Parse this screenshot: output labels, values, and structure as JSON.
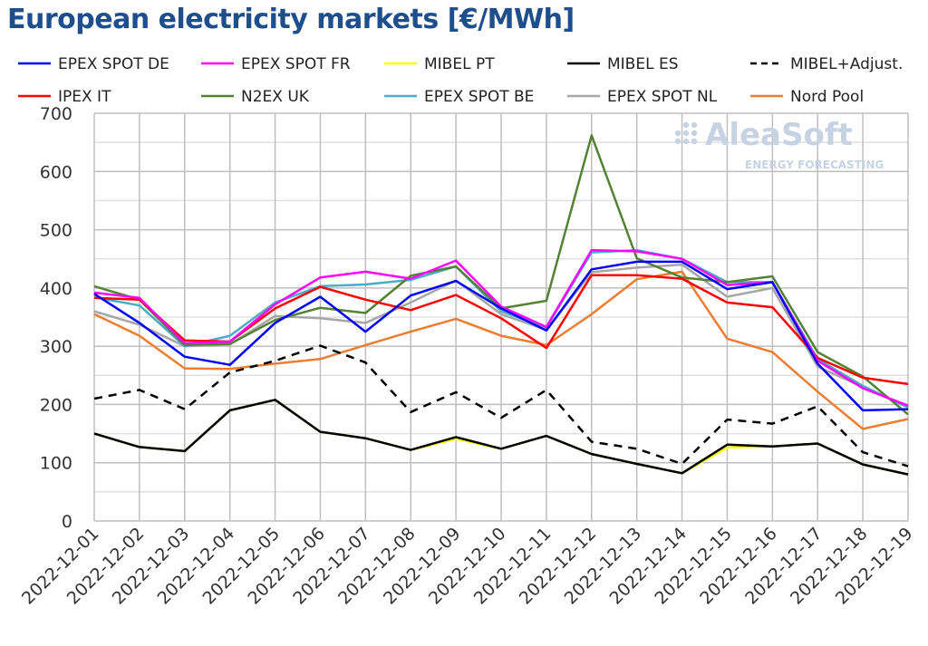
{
  "chart_data": {
    "type": "line",
    "title": "European electricity markets [€/MWh]",
    "xlabel": "",
    "ylabel": "",
    "ylim": [
      0,
      700
    ],
    "yticks": [
      0,
      100,
      200,
      300,
      400,
      500,
      600,
      700
    ],
    "grid": true,
    "legend_placement": "top",
    "watermark": {
      "line1": "AleaSoft",
      "line2": "ENERGY FORECASTING"
    },
    "x": [
      "2022-12-01",
      "2022-12-02",
      "2022-12-03",
      "2022-12-04",
      "2022-12-05",
      "2022-12-06",
      "2022-12-07",
      "2022-12-08",
      "2022-12-09",
      "2022-12-10",
      "2022-12-11",
      "2022-12-12",
      "2022-12-13",
      "2022-12-14",
      "2022-12-15",
      "2022-12-16",
      "2022-12-17",
      "2022-12-18",
      "2022-12-19"
    ],
    "series": [
      {
        "name": "EPEX SPOT DE",
        "color": "#0000ff",
        "dash": false,
        "values": [
          390,
          340,
          282,
          268,
          340,
          385,
          325,
          387,
          412,
          365,
          327,
          432,
          445,
          445,
          398,
          410,
          270,
          190,
          192
        ]
      },
      {
        "name": "EPEX SPOT FR",
        "color": "#ff00ff",
        "dash": false,
        "values": [
          392,
          383,
          305,
          308,
          372,
          418,
          428,
          416,
          447,
          368,
          333,
          465,
          463,
          450,
          405,
          410,
          275,
          228,
          198
        ]
      },
      {
        "name": "MIBEL PT",
        "color": "#ffff00",
        "dash": false,
        "values": [
          150,
          127,
          120,
          190,
          208,
          153,
          142,
          122,
          141,
          124,
          146,
          115,
          98,
          82,
          126,
          128,
          133,
          97,
          80
        ]
      },
      {
        "name": "MIBEL ES",
        "color": "#000000",
        "dash": false,
        "values": [
          150,
          127,
          120,
          190,
          208,
          153,
          142,
          122,
          144,
          124,
          146,
          115,
          98,
          82,
          131,
          128,
          133,
          97,
          80
        ]
      },
      {
        "name": "MIBEL+Adjust.",
        "color": "#000000",
        "dash": true,
        "values": [
          210,
          225,
          192,
          255,
          275,
          301,
          272,
          187,
          221,
          177,
          225,
          136,
          124,
          98,
          174,
          167,
          197,
          118,
          94
        ]
      },
      {
        "name": "IPEX IT",
        "color": "#ff0000",
        "dash": false,
        "values": [
          383,
          380,
          310,
          308,
          365,
          402,
          380,
          362,
          388,
          348,
          297,
          422,
          422,
          416,
          375,
          367,
          280,
          246,
          235
        ]
      },
      {
        "name": "N2EX UK",
        "color": "#548235",
        "dash": false,
        "values": [
          403,
          380,
          302,
          304,
          345,
          366,
          357,
          421,
          437,
          365,
          378,
          662,
          451,
          418,
          410,
          420,
          290,
          248,
          183
        ]
      },
      {
        "name": "EPEX SPOT BE",
        "color": "#4bacc6",
        "dash": false,
        "values": [
          384,
          370,
          300,
          318,
          375,
          403,
          406,
          414,
          437,
          360,
          332,
          461,
          465,
          450,
          410,
          410,
          278,
          232,
          195
        ]
      },
      {
        "name": "EPEX SPOT NL",
        "color": "#a6a6a6",
        "dash": false,
        "values": [
          360,
          337,
          300,
          303,
          352,
          348,
          340,
          375,
          413,
          355,
          328,
          427,
          435,
          440,
          385,
          400,
          265,
          230,
          195
        ]
      },
      {
        "name": "Nord Pool",
        "color": "#ed7d31",
        "dash": false,
        "values": [
          355,
          318,
          262,
          261,
          270,
          278,
          302,
          325,
          347,
          318,
          302,
          355,
          415,
          428,
          313,
          290,
          222,
          158,
          175
        ]
      }
    ]
  }
}
